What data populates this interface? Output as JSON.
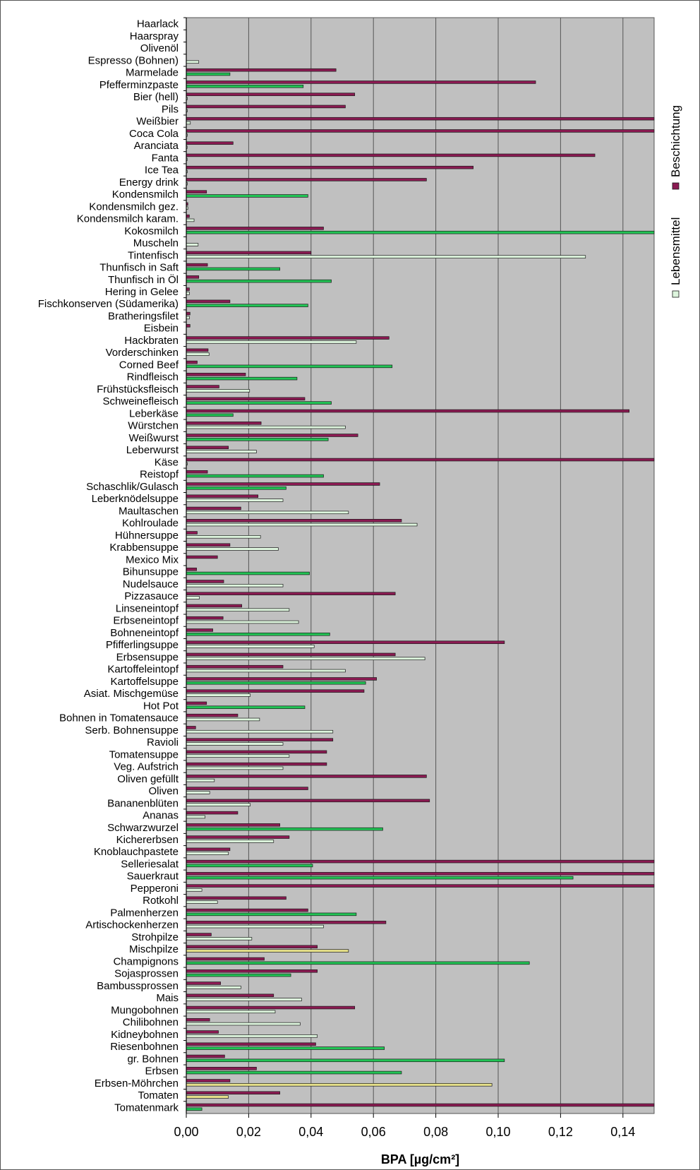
{
  "chart_data": {
    "type": "bar",
    "orientation": "horizontal",
    "title": "",
    "xlabel": "BPA [µg/cm²]",
    "ylabel": "",
    "xlim": [
      0,
      0.15
    ],
    "xticks": [
      "0,00",
      "0,02",
      "0,04",
      "0,06",
      "0,08",
      "0,10",
      "0,12",
      "0,14"
    ],
    "xtick_values": [
      0,
      0.02,
      0.04,
      0.06,
      0.08,
      0.1,
      0.12,
      0.14
    ],
    "grid": true,
    "legend_position": "right",
    "colors": {
      "plot_background": "#c0c0c0",
      "beschichtung": "#8b1a52",
      "lebensmittel_light": "#ddf5dd",
      "lebensmittel_green": "#22c455",
      "lebensmittel_yellow": "#e6e08a",
      "gridline": "#555555"
    },
    "categories": [
      "Haarlack",
      "Haarspray",
      "Olivenöl",
      "Espresso (Bohnen)",
      "Marmelade",
      "Pfefferminzpaste",
      "Bier (hell)",
      "Pils",
      "Weißbier",
      "Coca Cola",
      "Aranciata",
      "Fanta",
      "Ice Tea",
      "Energy drink",
      "Kondensmilch",
      "Kondensmilch gez.",
      "Kondensmilch karam.",
      "Kokosmilch",
      "Muscheln",
      "Tintenfisch",
      "Thunfisch in Saft",
      "Thunfisch in Öl",
      "Hering in Gelee",
      "Fischkonserven (Südamerika)",
      "Bratheringsfilet",
      "Eisbein",
      "Hackbraten",
      "Vorderschinken",
      "Corned Beef",
      "Rindfleisch",
      "Frühstücksfleisch",
      "Schweinefleisch",
      "Leberkäse",
      "Würstchen",
      "Weißwurst",
      "Leberwurst",
      "Käse",
      "Reistopf",
      "Schaschlik/Gulasch",
      "Leberknödelsuppe",
      "Maultaschen",
      "Kohlroulade",
      "Hühnersuppe",
      "Krabbensuppe",
      "Mexico Mix",
      "Bihunsuppe",
      "Nudelsauce",
      "Pizzasauce",
      "Linseneintopf",
      "Erbseneintopf",
      "Bohneneintopf",
      "Pfifferlingsuppe",
      "Erbsensuppe",
      "Kartoffeleintopf",
      "Kartoffelsuppe",
      "Asiat. Mischgemüse",
      "Hot Pot",
      "Bohnen in Tomatensauce",
      "Serb. Bohnensuppe",
      "Ravioli",
      "Tomatensuppe",
      "Veg. Aufstrich",
      "Oliven gefüllt",
      "Oliven",
      "Bananenblüten",
      "Ananas",
      "Schwarzwurzel",
      "Kichererbsen",
      "Knoblauchpastete",
      "Selleriesalat",
      "Sauerkraut",
      "Pepperoni",
      "Rotkohl",
      "Palmenherzen",
      "Artischockenherzen",
      "Strohpilze",
      "Mischpilze",
      "Champignons",
      "Sojasprossen",
      "Bambussprossen",
      "Mais",
      "Mungobohnen",
      "Chilibohnen",
      "Kidneybohnen",
      "Riesenbohnen",
      "gr. Bohnen",
      "Erbsen",
      "Erbsen-Möhrchen",
      "Tomaten",
      "Tomatenmark"
    ],
    "series": [
      {
        "name": "Beschichtung",
        "values": [
          0,
          0,
          0,
          0,
          0.048,
          0.112,
          0.054,
          0.051,
          0.15,
          0.15,
          0.015,
          0.131,
          0.092,
          0.077,
          0.0065,
          0.0005,
          0.001,
          0.044,
          0,
          0.04,
          0.0068,
          0.004,
          0.001,
          0.014,
          0.0012,
          0.0012,
          0.065,
          0.007,
          0.0035,
          0.019,
          0.0105,
          0.038,
          0.142,
          0.024,
          0.055,
          0.0135,
          0.15,
          0.0068,
          0.062,
          0.023,
          0.0175,
          0.069,
          0.0035,
          0.014,
          0.01,
          0.0033,
          0.012,
          0.067,
          0.0178,
          0.0118,
          0.0085,
          0.102,
          0.067,
          0.031,
          0.061,
          0.057,
          0.0065,
          0.0165,
          0.003,
          0.047,
          0.045,
          0.045,
          0.077,
          0.039,
          0.078,
          0.0165,
          0.03,
          0.033,
          0.014,
          0.15,
          0.15,
          0.15,
          0.032,
          0.039,
          0.064,
          0.008,
          0.042,
          0.025,
          0.042,
          0.011,
          0.028,
          0.054,
          0.0075,
          0.0103,
          0.0415,
          0.0123,
          0.0225,
          0.014,
          0.03,
          0.15
        ]
      },
      {
        "name": "Lebensmittel",
        "values": [
          0,
          0,
          0,
          0.004,
          0.014,
          0.0375,
          0.0003,
          0.0003,
          0.0013,
          0.0003,
          0.0002,
          0.0002,
          0.0003,
          0.0003,
          0.039,
          0.0005,
          0.0025,
          0.15,
          0.0038,
          0.128,
          0.03,
          0.0465,
          0.001,
          0.039,
          0.001,
          0,
          0.0545,
          0.0073,
          0.066,
          0.0355,
          0.0203,
          0.0465,
          0.015,
          0.051,
          0.0455,
          0.0225,
          0.0003,
          0.044,
          0.032,
          0.031,
          0.052,
          0.074,
          0.0238,
          0.0295,
          0,
          0.0395,
          0.031,
          0.0042,
          0.033,
          0.036,
          0.046,
          0.041,
          0.0765,
          0.051,
          0.0575,
          0.0205,
          0.038,
          0.0235,
          0.047,
          0.031,
          0.033,
          0.031,
          0.009,
          0.0075,
          0.0205,
          0.006,
          0.063,
          0.028,
          0.0135,
          0.0405,
          0.124,
          0.005,
          0.01,
          0.0545,
          0.044,
          0.021,
          0.052,
          0.11,
          0.0335,
          0.0175,
          0.037,
          0.0285,
          0.0365,
          0.042,
          0.0635,
          0.102,
          0.069,
          0.098,
          0.0135,
          0.005
        ],
        "bar_color_keys": [
          "lebensmittel_light",
          "lebensmittel_light",
          "lebensmittel_light",
          "lebensmittel_light",
          "lebensmittel_green",
          "lebensmittel_green",
          "lebensmittel_light",
          "lebensmittel_light",
          "lebensmittel_light",
          "lebensmittel_light",
          "lebensmittel_light",
          "lebensmittel_light",
          "lebensmittel_light",
          "lebensmittel_light",
          "lebensmittel_green",
          "lebensmittel_light",
          "lebensmittel_light",
          "lebensmittel_green",
          "lebensmittel_light",
          "lebensmittel_light",
          "lebensmittel_green",
          "lebensmittel_green",
          "lebensmittel_light",
          "lebensmittel_green",
          "lebensmittel_light",
          "lebensmittel_light",
          "lebensmittel_light",
          "lebensmittel_light",
          "lebensmittel_green",
          "lebensmittel_green",
          "lebensmittel_light",
          "lebensmittel_green",
          "lebensmittel_green",
          "lebensmittel_light",
          "lebensmittel_green",
          "lebensmittel_light",
          "lebensmittel_light",
          "lebensmittel_green",
          "lebensmittel_green",
          "lebensmittel_light",
          "lebensmittel_light",
          "lebensmittel_light",
          "lebensmittel_light",
          "lebensmittel_light",
          "lebensmittel_light",
          "lebensmittel_green",
          "lebensmittel_light",
          "lebensmittel_light",
          "lebensmittel_light",
          "lebensmittel_light",
          "lebensmittel_green",
          "lebensmittel_light",
          "lebensmittel_light",
          "lebensmittel_light",
          "lebensmittel_green",
          "lebensmittel_light",
          "lebensmittel_green",
          "lebensmittel_light",
          "lebensmittel_light",
          "lebensmittel_light",
          "lebensmittel_light",
          "lebensmittel_light",
          "lebensmittel_light",
          "lebensmittel_light",
          "lebensmittel_light",
          "lebensmittel_light",
          "lebensmittel_green",
          "lebensmittel_light",
          "lebensmittel_light",
          "lebensmittel_green",
          "lebensmittel_green",
          "lebensmittel_light",
          "lebensmittel_light",
          "lebensmittel_green",
          "lebensmittel_light",
          "lebensmittel_light",
          "lebensmittel_yellow",
          "lebensmittel_green",
          "lebensmittel_green",
          "lebensmittel_light",
          "lebensmittel_light",
          "lebensmittel_light",
          "lebensmittel_light",
          "lebensmittel_light",
          "lebensmittel_green",
          "lebensmittel_green",
          "lebensmittel_green",
          "lebensmittel_yellow",
          "lebensmittel_yellow",
          "lebensmittel_green"
        ]
      }
    ]
  }
}
